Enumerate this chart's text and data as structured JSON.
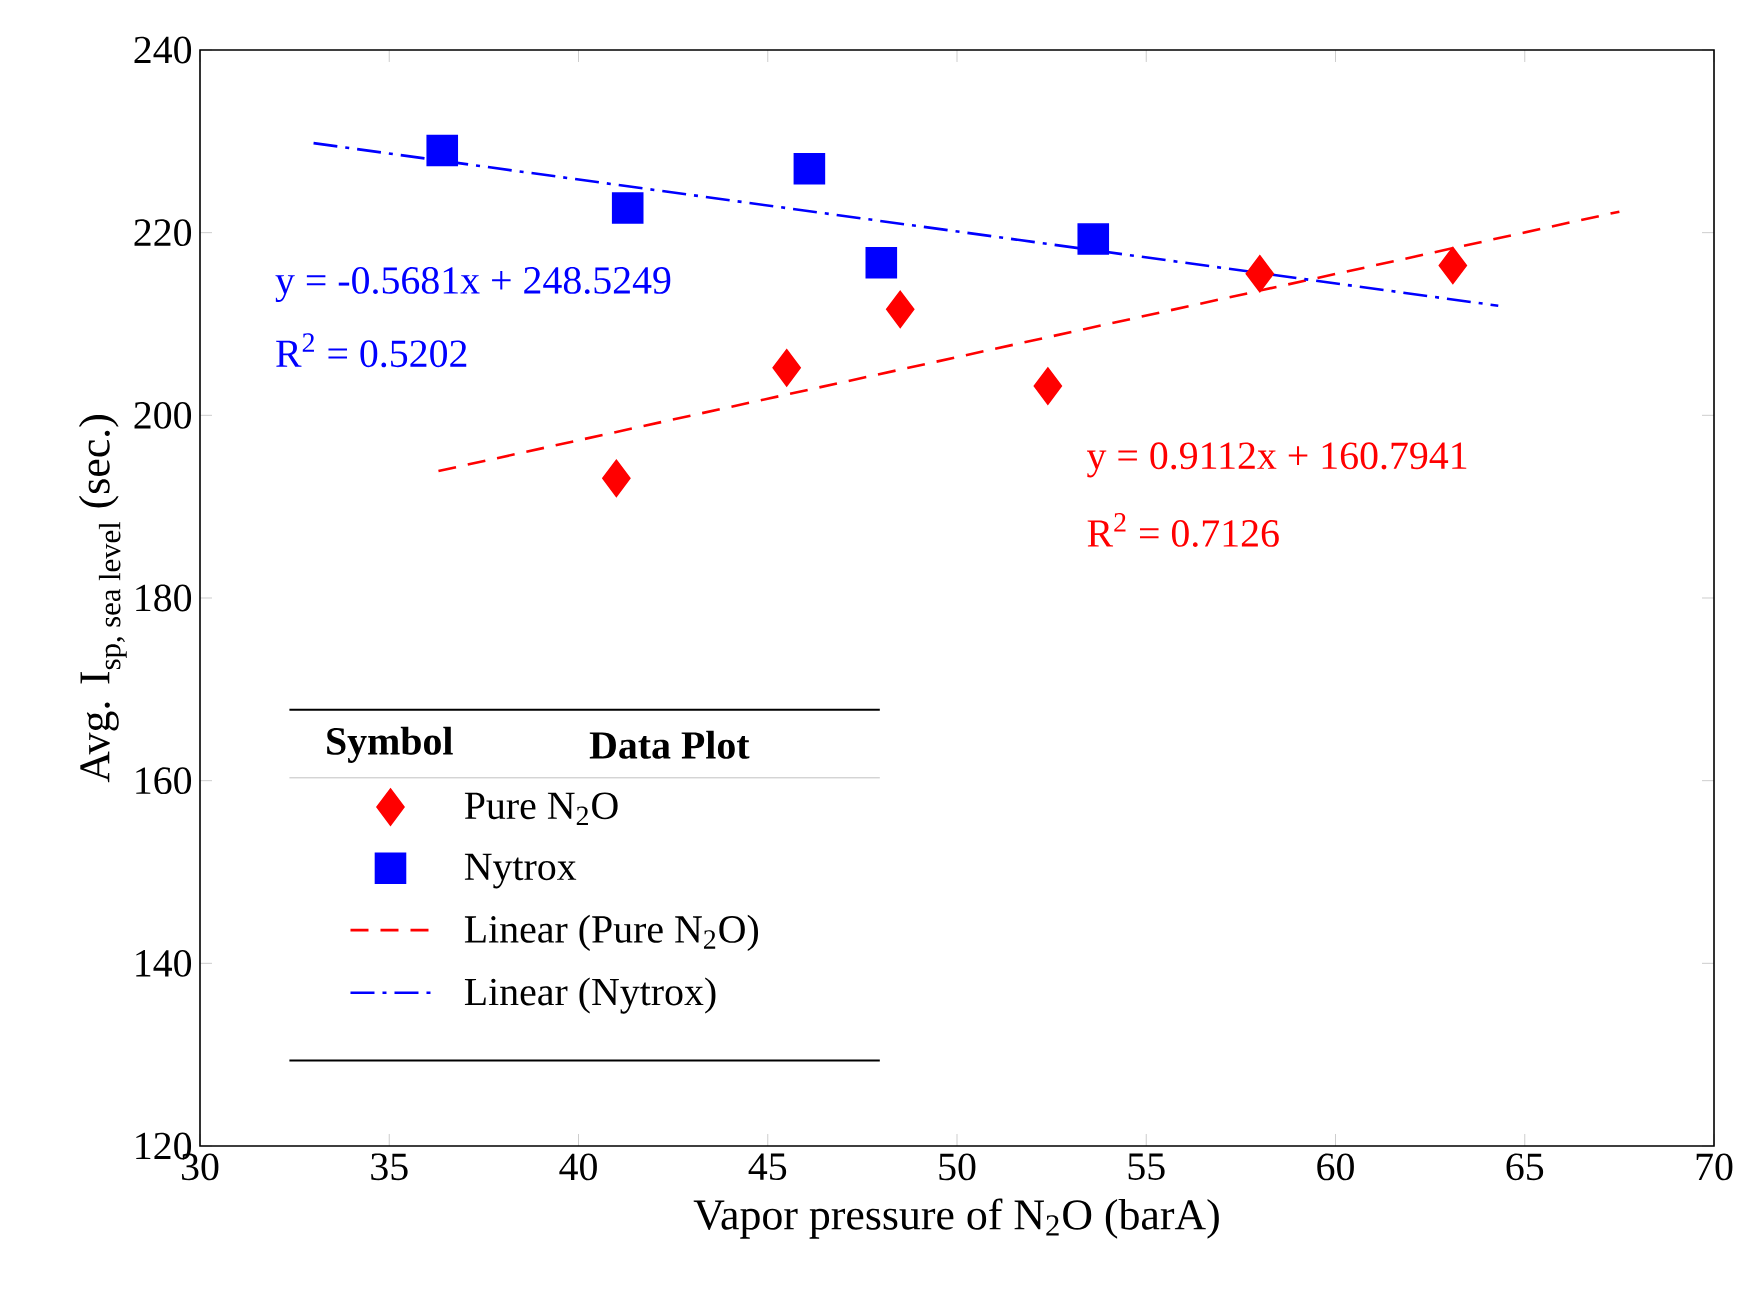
{
  "chart_data": {
    "type": "scatter",
    "xlabel": "Vapor pressure of N$_{2}$O (barA)",
    "ylabel": "\\text{Avg. I}_{\\text{sp, sea level}}\\text{ (sec.)}",
    "legend_title": "Data Plot",
    "xlim": [
      30,
      70
    ],
    "xticks": [
      30,
      35,
      40,
      45,
      50,
      55,
      60,
      65,
      70
    ],
    "ylim": [
      120,
      240
    ],
    "yticks": [
      120,
      140,
      160,
      180,
      200,
      220,
      240
    ],
    "grid": false,
    "legend": "bottom left",
    "annotations": [
      "y = -0.5681x + 248.5249",
      "R$^{2}$ = 0.5202",
      "y = 0.9112x + 160.7941",
      "R$^{2}$ = 0.7126",
      "Symbol"
    ],
    "series": [
      {
        "name": "Pure N$_{2}$O",
        "marker": "diamond",
        "color": "#ff0000",
        "x": [
          41.0,
          45.5,
          48.5,
          52.4,
          58.0,
          63.1
        ],
        "values": [
          193.1,
          205.2,
          211.6,
          203.2,
          215.5,
          216.4
        ]
      },
      {
        "name": "Nytrox",
        "marker": "square",
        "color": "#0000ff",
        "x": [
          36.4,
          41.3,
          46.1,
          48.0,
          53.6
        ],
        "values": [
          229.0,
          222.7,
          227.0,
          216.7,
          219.3
        ]
      },
      {
        "name": "Linear (Pure N$_{2}$O)",
        "type": "line",
        "marker": "none",
        "line_style": "dashed",
        "color": "#ff0000",
        "x": [
          36.3,
          67.5
        ],
        "values": [
          193.9,
          222.3
        ]
      },
      {
        "name": "Linear (Nytrox)",
        "type": "line",
        "marker": "none",
        "line_style": "dashdot",
        "color": "#0000ff",
        "x": [
          33.0,
          64.3
        ],
        "values": [
          229.8,
          212.0
        ]
      }
    ]
  }
}
